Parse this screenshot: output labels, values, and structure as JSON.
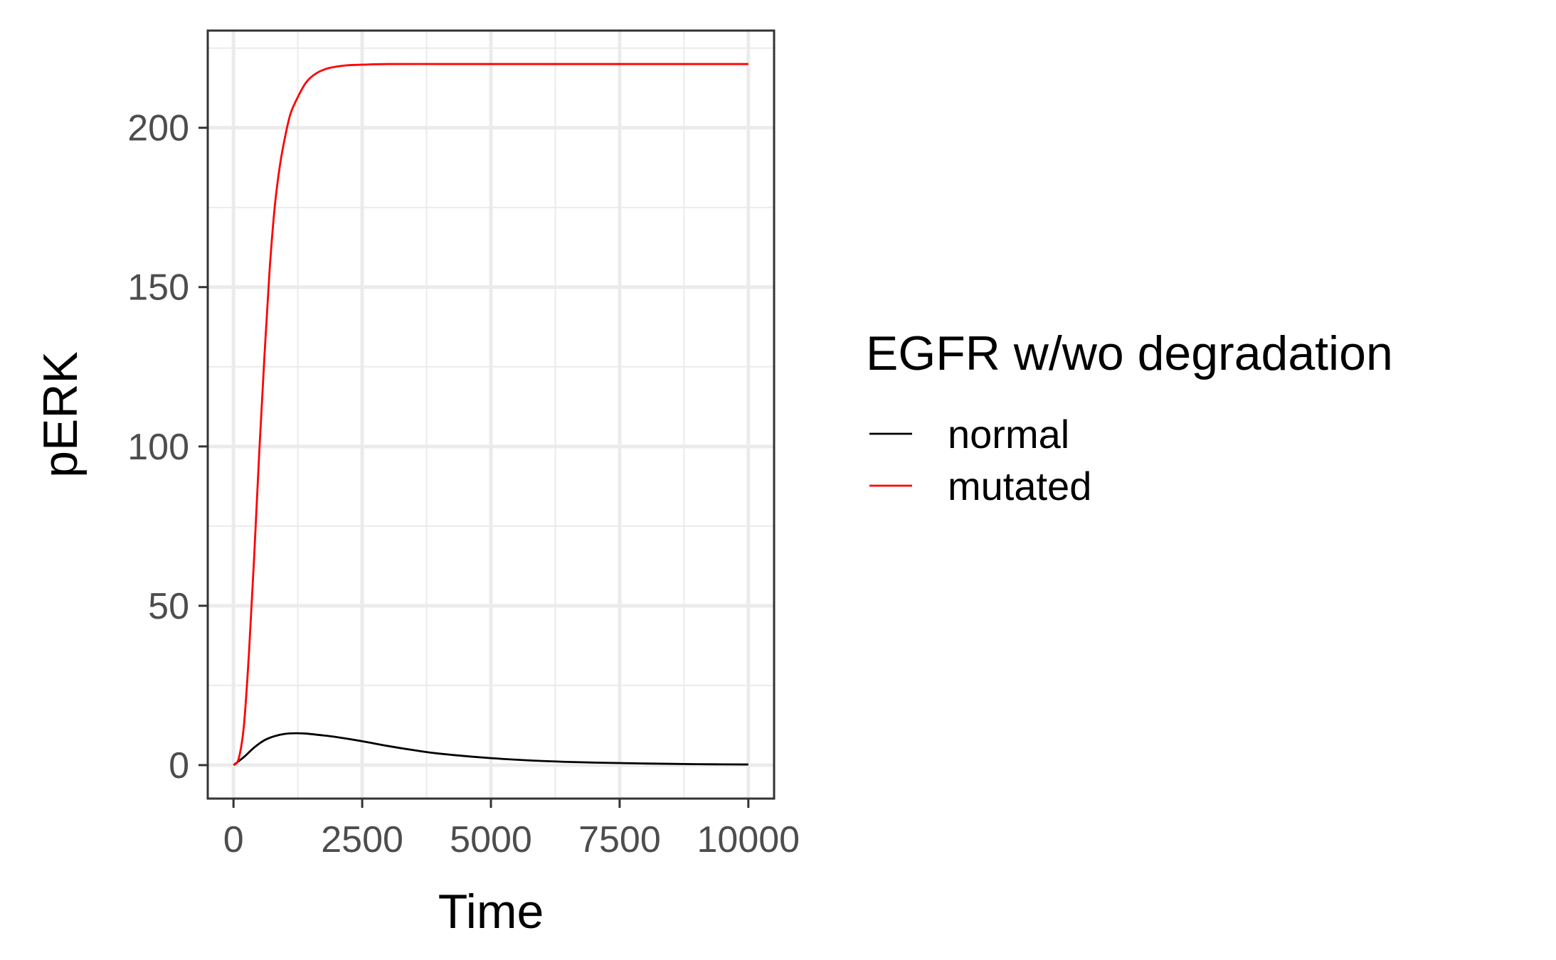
{
  "chart_data": {
    "type": "line",
    "title": "",
    "xlabel": "Time",
    "ylabel": "pERK",
    "xlim": [
      -500,
      10500
    ],
    "ylim": [
      -10.5,
      230.5
    ],
    "x_ticks": [
      0,
      2500,
      5000,
      7500,
      10000
    ],
    "x_tick_labels": [
      "0",
      "2500",
      "5000",
      "7500",
      "10000"
    ],
    "y_ticks": [
      0,
      50,
      100,
      150,
      200
    ],
    "y_tick_labels": [
      "0",
      "50",
      "100",
      "150",
      "200"
    ],
    "grid": true,
    "legend": {
      "title": "EGFR w/wo degradation",
      "position": "right"
    },
    "series": [
      {
        "name": "normal",
        "color": "#000000",
        "x": [
          0,
          200,
          400,
          600,
          800,
          1000,
          1200,
          1400,
          1700,
          2000,
          2500,
          3000,
          3500,
          4000,
          5000,
          6000,
          7000,
          8000,
          9000,
          10000
        ],
        "y": [
          0,
          2.5,
          5.5,
          7.8,
          9.1,
          9.8,
          10.0,
          9.9,
          9.4,
          8.8,
          7.5,
          6.0,
          4.7,
          3.6,
          2.2,
          1.3,
          0.8,
          0.5,
          0.3,
          0.2
        ]
      },
      {
        "name": "mutated",
        "color": "#ff0000",
        "x": [
          0,
          100,
          200,
          300,
          400,
          500,
          600,
          700,
          800,
          900,
          1000,
          1100,
          1200,
          1400,
          1600,
          1800,
          2000,
          2200,
          2500,
          3000,
          4000,
          5000,
          6000,
          7000,
          8000,
          9000,
          10000
        ],
        "y": [
          0,
          2,
          12,
          35,
          65,
          98,
          128,
          155,
          175,
          188,
          197,
          204,
          208,
          214,
          217,
          218.5,
          219.2,
          219.6,
          219.8,
          220,
          220,
          220,
          220,
          220,
          220,
          220,
          220
        ]
      }
    ]
  }
}
